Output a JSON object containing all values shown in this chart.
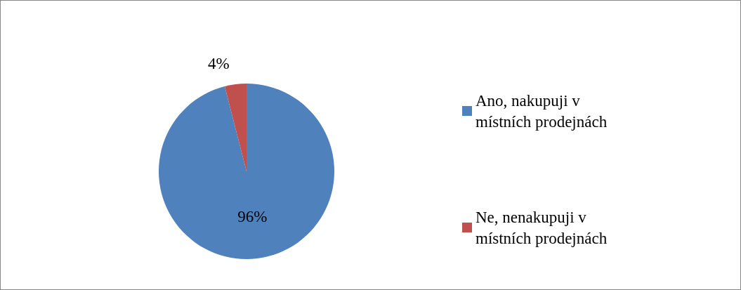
{
  "chart_data": {
    "type": "pie",
    "categories": [
      "Ano, nakupuji v místních prodejnách",
      "Ne, nenakupuji v místních prodejnách"
    ],
    "values": [
      96,
      4
    ],
    "colors": [
      "#4f81bd",
      "#c0504d"
    ],
    "value_labels": [
      "96%",
      "4%"
    ],
    "legend": "right"
  }
}
